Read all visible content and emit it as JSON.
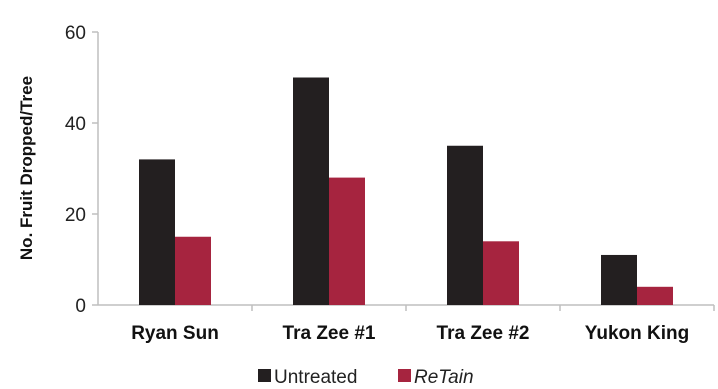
{
  "chart_data": {
    "type": "bar",
    "title": "",
    "xlabel": "",
    "ylabel": "No. Fruit  Dropped/Tree",
    "ylim": [
      0,
      60
    ],
    "yticks": [
      0,
      20,
      40,
      60
    ],
    "grid": false,
    "legend_position": "bottom",
    "categories": [
      "Ryan Sun",
      "Tra Zee #1",
      "Tra Zee #2",
      "Yukon King"
    ],
    "series": [
      {
        "name": "Untreated",
        "values": [
          32,
          50,
          35,
          11
        ],
        "color": "#231f20"
      },
      {
        "name": "ReTain",
        "values": [
          15,
          28,
          14,
          4
        ],
        "color": "#a6243f",
        "italic": true
      }
    ]
  }
}
